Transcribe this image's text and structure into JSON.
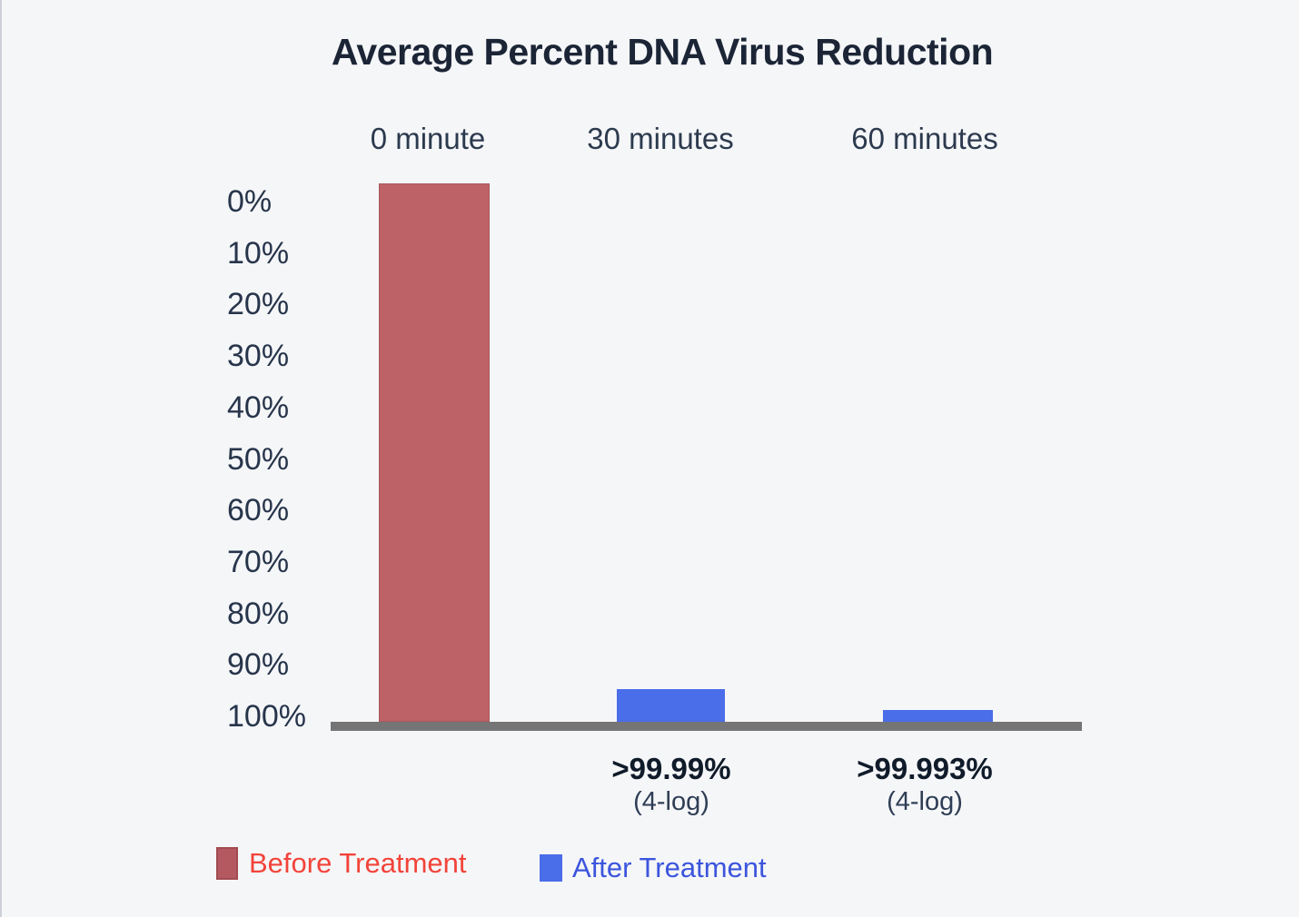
{
  "chart_data": {
    "type": "bar",
    "title": "Average Percent DNA Virus Reduction",
    "categories": [
      "0 minute",
      "30 minutes",
      "60 minutes"
    ],
    "y_axis": {
      "tick_labels": [
        "0%",
        "10%",
        "20%",
        "30%",
        "40%",
        "50%",
        "60%",
        "70%",
        "80%",
        "90%",
        "100%"
      ],
      "min": 0,
      "max": 100,
      "unit": "%",
      "inverted": true,
      "grid": false
    },
    "baseline_color": "#757575",
    "background_color": "#f5f6f8",
    "series": [
      {
        "name": "Before Treatment",
        "color": "#bd6266",
        "border_color": "#ab585c",
        "points": [
          {
            "category_index": 0,
            "display_height_pct": 100,
            "label": "",
            "sublabel": ""
          }
        ]
      },
      {
        "name": "After Treatment",
        "color": "#4a6de9",
        "border_color": "#4a6de9",
        "points": [
          {
            "category_index": 1,
            "display_height_pct": 6.1,
            "label": ">99.99%",
            "sublabel": "(4-log)"
          },
          {
            "category_index": 2,
            "display_height_pct": 2.2,
            "label": ">99.993%",
            "sublabel": "(4-log)"
          }
        ]
      }
    ],
    "legend": {
      "position": "bottom-left",
      "items": [
        {
          "label": "Before Treatment",
          "swatch_color": "#b4595f",
          "swatch_border_color": "#a14b51",
          "text_color": "#f2443a"
        },
        {
          "label": "After Treatment",
          "swatch_color": "#4a6de9",
          "swatch_border_color": "#4a6de9",
          "text_color": "#3c55dd"
        }
      ]
    }
  }
}
